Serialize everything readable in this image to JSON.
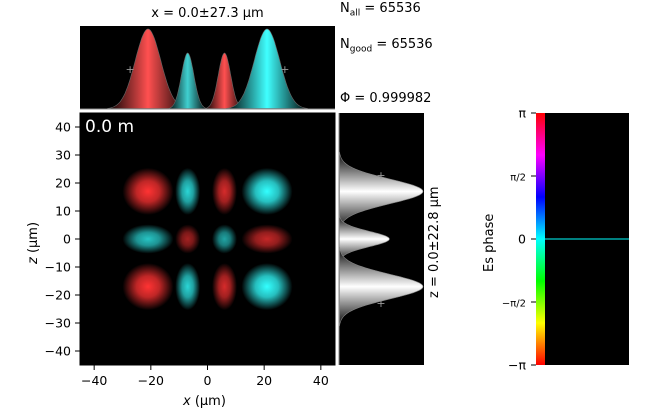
{
  "labels": {
    "top_title": "x = 0.0±27.3 μm",
    "side_title": "z = 0.0±22.8 μm",
    "n_all": "N_all = 65536",
    "n_good": "N_good = 65536",
    "phi": "Φ = 0.999982",
    "distance": "0.0 m",
    "colorbar_label": "Es phase"
  },
  "chart_data": [
    {
      "type": "heatmap",
      "xlabel": "x (μm)",
      "ylabel": "z (μm)",
      "xlim": [
        -45,
        45
      ],
      "ylim": [
        -45,
        45
      ],
      "x_ticks": [
        "−40",
        "−20",
        "0",
        "20",
        "40"
      ],
      "y_ticks": [
        "40",
        "30",
        "20",
        "10",
        "0",
        "−10",
        "−20",
        "−30",
        "−40"
      ],
      "annotation": "0.0 m",
      "spots": {
        "x_centers": [
          -21,
          -7,
          6,
          21
        ],
        "x_sigmas": [
          4.5,
          2.2,
          2.2,
          4.5
        ],
        "z_centers": [
          17,
          0,
          -17
        ],
        "z_sigmas": [
          4.2,
          2.6,
          4.2
        ],
        "row_weights": [
          1.0,
          0.6,
          1.0
        ],
        "col_weights": [
          1.0,
          0.7,
          0.7,
          1.0
        ],
        "phase": [
          [
            "red",
            "cyan",
            "red",
            "cyan"
          ],
          [
            "cyan",
            "red",
            "cyan",
            "red"
          ],
          [
            "red",
            "cyan",
            "red",
            "cyan"
          ]
        ]
      },
      "colors": {
        "red": "#ff3333",
        "cyan": "#33ffff",
        "background": "#000000"
      }
    },
    {
      "type": "area",
      "title": "x = 0.0±27.3 μm",
      "x": [
        -21,
        -7,
        6,
        21
      ],
      "peak_heights": [
        1.0,
        0.7,
        0.7,
        1.0
      ],
      "peak_colors": [
        "#ff5050",
        "#40d0d0",
        "#ff5050",
        "#40ffff"
      ],
      "marker_x": [
        -27.3,
        27.3
      ]
    },
    {
      "type": "area",
      "title": "z = 0.0±22.8 μm",
      "z": [
        17,
        0,
        -17
      ],
      "peak_heights": [
        1.0,
        0.6,
        1.0
      ],
      "color": "grayscale",
      "marker_z": [
        22.8,
        -22.8
      ]
    },
    {
      "type": "heatmap",
      "title": "Es phase",
      "ylim": [
        "−π",
        "π"
      ],
      "tick_labels": [
        "π",
        "π/2",
        "0",
        "−π/2",
        "−π"
      ],
      "line_value": 0,
      "line_color": "#00ffff"
    }
  ]
}
